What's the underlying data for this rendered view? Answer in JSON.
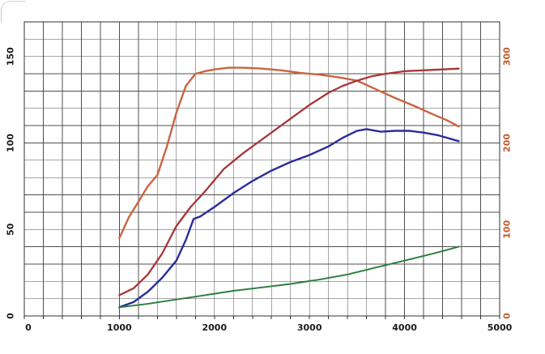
{
  "page": {
    "background": "#ffffff"
  },
  "chart_data": {
    "type": "line",
    "title": "",
    "xlabel": "",
    "ylabel_left": "",
    "ylabel_right": "",
    "legend": "none",
    "grid": {
      "on": true,
      "color": "#4f4f4f",
      "border_color": "#303030",
      "minor_x_step": 200,
      "minor_y_step": 10
    },
    "x": {
      "min": 0,
      "max": 5000,
      "tick_values": [
        0,
        1000,
        2000,
        3000,
        4000,
        5000
      ],
      "tick_labels": [
        "0",
        "1000",
        "2000",
        "3000",
        "4000",
        "5000"
      ],
      "label_color": "#1a1a1a"
    },
    "y_left": {
      "min": 0,
      "max": 170,
      "tick_values": [
        0,
        50,
        100,
        150
      ],
      "tick_labels": [
        "0",
        "50",
        "100",
        "150"
      ],
      "label_color": "#1a1a1a"
    },
    "y_right": {
      "min": 0,
      "max": 340,
      "tick_values": [
        0,
        100,
        200,
        300
      ],
      "tick_labels": [
        "0",
        "100",
        "200",
        "300"
      ],
      "label_color": "#c55a28"
    },
    "series": [
      {
        "name": "orange-curve",
        "axis": "right",
        "color": "#c96440",
        "stroke_width": 2.4,
        "points": [
          [
            1000,
            90
          ],
          [
            1100,
            114
          ],
          [
            1200,
            132
          ],
          [
            1300,
            150
          ],
          [
            1400,
            163
          ],
          [
            1500,
            196
          ],
          [
            1600,
            235
          ],
          [
            1700,
            266
          ],
          [
            1800,
            280
          ],
          [
            1900,
            283
          ],
          [
            2000,
            285
          ],
          [
            2150,
            287
          ],
          [
            2300,
            287
          ],
          [
            2500,
            286
          ],
          [
            2700,
            284
          ],
          [
            2900,
            281
          ],
          [
            3100,
            279
          ],
          [
            3300,
            276
          ],
          [
            3500,
            272
          ],
          [
            3600,
            267
          ],
          [
            3700,
            262
          ],
          [
            3900,
            252
          ],
          [
            4100,
            243
          ],
          [
            4300,
            233
          ],
          [
            4450,
            226
          ],
          [
            4570,
            219
          ]
        ]
      },
      {
        "name": "red-curve",
        "axis": "left",
        "color": "#a83538",
        "stroke_width": 2.3,
        "points": [
          [
            1000,
            12
          ],
          [
            1150,
            16
          ],
          [
            1300,
            24
          ],
          [
            1450,
            36
          ],
          [
            1600,
            52
          ],
          [
            1750,
            63
          ],
          [
            1900,
            72
          ],
          [
            2100,
            85
          ],
          [
            2300,
            94
          ],
          [
            2450,
            100
          ],
          [
            2600,
            106
          ],
          [
            2800,
            114
          ],
          [
            3000,
            122
          ],
          [
            3200,
            129
          ],
          [
            3350,
            133
          ],
          [
            3500,
            136
          ],
          [
            3650,
            138.5
          ],
          [
            3800,
            140
          ],
          [
            4000,
            141.5
          ],
          [
            4200,
            142
          ],
          [
            4400,
            142.5
          ],
          [
            4570,
            143
          ]
        ]
      },
      {
        "name": "blue-curve",
        "axis": "left",
        "color": "#2c2c9c",
        "stroke_width": 2.4,
        "points": [
          [
            1000,
            5
          ],
          [
            1150,
            8
          ],
          [
            1300,
            14
          ],
          [
            1450,
            22
          ],
          [
            1600,
            32
          ],
          [
            1700,
            44
          ],
          [
            1780,
            56
          ],
          [
            1850,
            57.5
          ],
          [
            2000,
            63
          ],
          [
            2200,
            71
          ],
          [
            2400,
            78
          ],
          [
            2600,
            84
          ],
          [
            2800,
            89
          ],
          [
            3000,
            93
          ],
          [
            3200,
            98
          ],
          [
            3350,
            103
          ],
          [
            3500,
            107
          ],
          [
            3600,
            108
          ],
          [
            3750,
            106.5
          ],
          [
            3900,
            107
          ],
          [
            4050,
            107
          ],
          [
            4200,
            106
          ],
          [
            4350,
            104.5
          ],
          [
            4570,
            101
          ]
        ]
      },
      {
        "name": "green-curve",
        "axis": "left",
        "color": "#2a7d3f",
        "stroke_width": 1.9,
        "points": [
          [
            1000,
            5
          ],
          [
            1300,
            7
          ],
          [
            1600,
            9.5
          ],
          [
            1900,
            12
          ],
          [
            2200,
            14.5
          ],
          [
            2500,
            16.5
          ],
          [
            2800,
            18.5
          ],
          [
            3100,
            21
          ],
          [
            3400,
            24
          ],
          [
            3700,
            28
          ],
          [
            4000,
            32
          ],
          [
            4300,
            36
          ],
          [
            4570,
            40
          ]
        ]
      }
    ]
  }
}
